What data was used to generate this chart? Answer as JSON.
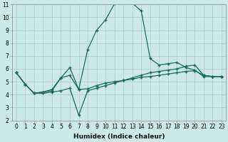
{
  "xlabel": "Humidex (Indice chaleur)",
  "background_color": "#cce8e8",
  "grid_color": "#b0d0d0",
  "line_color": "#1a6b5a",
  "xlim": [
    -0.5,
    23.5
  ],
  "ylim": [
    2,
    11
  ],
  "xticks": [
    0,
    1,
    2,
    3,
    4,
    5,
    6,
    7,
    8,
    9,
    10,
    11,
    12,
    13,
    14,
    15,
    16,
    17,
    18,
    19,
    20,
    21,
    22,
    23
  ],
  "yticks": [
    2,
    3,
    4,
    5,
    6,
    7,
    8,
    9,
    10,
    11
  ],
  "line1_x": [
    0,
    1,
    2,
    3,
    4,
    5,
    6,
    7,
    8,
    9,
    10,
    11,
    12,
    13,
    14,
    15,
    16,
    17,
    18,
    19,
    20,
    21,
    22,
    23
  ],
  "line1_y": [
    5.7,
    4.8,
    4.1,
    4.2,
    4.3,
    5.3,
    6.1,
    4.4,
    7.5,
    9.0,
    9.8,
    11.05,
    11.2,
    11.1,
    10.5,
    6.8,
    6.3,
    6.4,
    6.5,
    6.1,
    5.9,
    5.4,
    5.4,
    5.4
  ],
  "line2_x": [
    0,
    1,
    2,
    3,
    4,
    5,
    6,
    7,
    8,
    9,
    10,
    11,
    12,
    13,
    14,
    15,
    16,
    17,
    18,
    19,
    20,
    21,
    22,
    23
  ],
  "line2_y": [
    5.7,
    4.8,
    4.1,
    4.2,
    4.4,
    5.3,
    5.5,
    4.4,
    4.45,
    4.7,
    4.9,
    5.0,
    5.1,
    5.2,
    5.35,
    5.4,
    5.5,
    5.6,
    5.7,
    5.8,
    5.85,
    5.5,
    5.4,
    5.4
  ],
  "line3_x": [
    0,
    1,
    2,
    3,
    4,
    5,
    6,
    7,
    8,
    9,
    10,
    11,
    12,
    13,
    14,
    15,
    16,
    17,
    18,
    19,
    20,
    21,
    22,
    23
  ],
  "line3_y": [
    5.7,
    4.8,
    4.1,
    4.1,
    4.2,
    4.3,
    4.5,
    2.4,
    4.3,
    4.5,
    4.7,
    4.9,
    5.1,
    5.3,
    5.5,
    5.7,
    5.8,
    5.9,
    6.0,
    6.2,
    6.3,
    5.5,
    5.4,
    5.4
  ],
  "tick_fontsize": 5.5,
  "xlabel_fontsize": 6.5
}
